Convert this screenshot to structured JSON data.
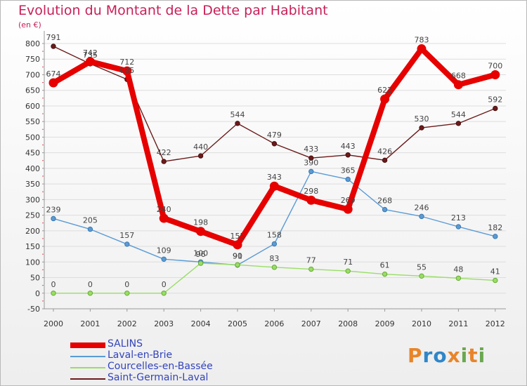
{
  "title": "Evolution du Montant de la Dette par Habitant",
  "unit": "(en €)",
  "logo_text": "Proxiti",
  "colors": {
    "title": "#c8205a",
    "axis_text": "#333333",
    "grid": "#dddddd",
    "legend_text": "#3344bb"
  },
  "chart_data": {
    "type": "line",
    "title": "Evolution du Montant de la Dette par Habitant",
    "ylabel": "(en €)",
    "xlabel": "",
    "ylim": [
      -50,
      800
    ],
    "yticks": [
      -50,
      0,
      50,
      100,
      150,
      200,
      250,
      300,
      350,
      400,
      450,
      500,
      550,
      600,
      650,
      700,
      750,
      800
    ],
    "grid": "horizontal",
    "legend_position": "bottom-left",
    "x": [
      "2000",
      "2001",
      "2002",
      "2003",
      "2004",
      "2005",
      "2006",
      "2007",
      "2008",
      "2009",
      "2010",
      "2011",
      "2012"
    ],
    "series": [
      {
        "name": "SALINS",
        "color": "#e60000",
        "values": [
          674,
          742,
          712,
          240,
          198,
          155,
          343,
          298,
          269,
          622,
          783,
          668,
          700
        ],
        "labels": [
          "674",
          "742",
          "712",
          "240",
          "198",
          "155",
          "343",
          "298",
          "269",
          "622",
          "783",
          "668",
          "700"
        ]
      },
      {
        "name": "Laval-en-Brie",
        "color": "#5b9bd5",
        "values": [
          239,
          205,
          157,
          109,
          100,
          90,
          158,
          390,
          365,
          268,
          246,
          213,
          182
        ],
        "labels": [
          "239",
          "205",
          "157",
          "109",
          "100",
          "90",
          "158",
          "390",
          "365",
          "268",
          "246",
          "213",
          "182"
        ]
      },
      {
        "name": "Courcelles-en-Bassée",
        "color": "#99dd66",
        "values": [
          0,
          0,
          0,
          0,
          96,
          91,
          83,
          77,
          71,
          61,
          55,
          48,
          41
        ],
        "labels": [
          "0",
          "0",
          "0",
          "0",
          "96",
          "91",
          "83",
          "77",
          "71",
          "61",
          "55",
          "48",
          "41"
        ]
      },
      {
        "name": "Saint-Germain-Laval",
        "color": "#6b1a1a",
        "values": [
          791,
          735,
          685,
          422,
          440,
          544,
          479,
          433,
          443,
          426,
          530,
          544,
          592
        ],
        "labels": [
          "791",
          "735",
          "685",
          "422",
          "440",
          "544",
          "479",
          "433",
          "443",
          "426",
          "530",
          "544",
          "592"
        ]
      }
    ]
  }
}
